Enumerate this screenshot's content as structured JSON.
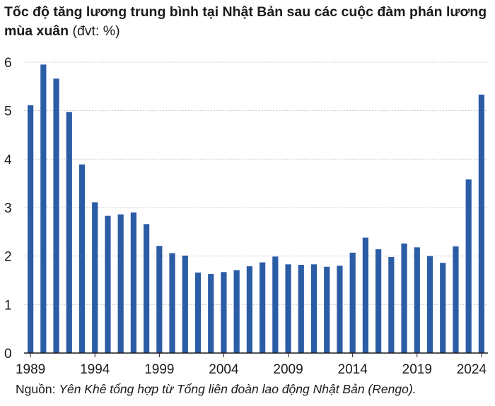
{
  "chart_data": {
    "type": "bar",
    "title": "Tốc độ tăng lương trung bình tại Nhật Bản sau các cuộc đàm phán lương mùa xuân",
    "unit": "(đvt: %)",
    "xlabel": "",
    "ylabel": "",
    "ylim": [
      0,
      6
    ],
    "yticks": [
      0,
      1,
      2,
      3,
      4,
      5,
      6
    ],
    "xtick_labels": [
      "1989",
      "1994",
      "1999",
      "2004",
      "2009",
      "2014",
      "2019",
      "2024"
    ],
    "grid": true,
    "bar_color": "#2b5ca6",
    "categories": [
      "1989",
      "1990",
      "1991",
      "1992",
      "1993",
      "1994",
      "1995",
      "1996",
      "1997",
      "1998",
      "1999",
      "2000",
      "2001",
      "2002",
      "2003",
      "2004",
      "2005",
      "2006",
      "2007",
      "2008",
      "2009",
      "2010",
      "2011",
      "2012",
      "2013",
      "2014",
      "2015",
      "2016",
      "2017",
      "2018",
      "2019",
      "2020",
      "2021",
      "2022",
      "2023",
      "2024"
    ],
    "values": [
      5.11,
      5.95,
      5.66,
      4.97,
      3.89,
      3.11,
      2.83,
      2.86,
      2.9,
      2.66,
      2.21,
      2.06,
      2.01,
      1.66,
      1.63,
      1.67,
      1.71,
      1.79,
      1.87,
      1.99,
      1.83,
      1.82,
      1.83,
      1.78,
      1.8,
      2.07,
      2.38,
      2.14,
      1.98,
      2.26,
      2.18,
      2.0,
      1.86,
      2.2,
      3.58,
      5.33
    ]
  },
  "source": {
    "prefix": "Nguồn:",
    "text": "Yên Khê tổng hợp từ Tổng liên đoàn lao động Nhật Bản (Rengo)."
  }
}
